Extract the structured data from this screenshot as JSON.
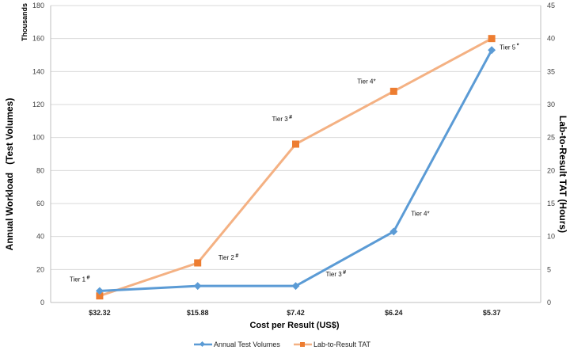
{
  "colors": {
    "series_1": "#5b9bd5",
    "series_2": "#f4b183",
    "series_2_marker": "#ed7d31",
    "grid": "#d9d9d9"
  },
  "chart_data": {
    "type": "line",
    "title": "",
    "xlabel": "Cost per Result (US$)",
    "ylabel": "Annual Workload   (Test Volumes)",
    "ylabel_units": "Thousands",
    "y2label": "Lab-to-Result TAT (Hours)",
    "categories": [
      "$32.32",
      "$15.88",
      "$7.42",
      "$6.24",
      "$5.37"
    ],
    "ylim": [
      0,
      180
    ],
    "y2lim": [
      0,
      45
    ],
    "yticks": [
      "0",
      "20",
      "40",
      "60",
      "80",
      "100",
      "120",
      "140",
      "160",
      "180"
    ],
    "y2ticks": [
      "0",
      "5",
      "10",
      "15",
      "20",
      "25",
      "30",
      "35",
      "40",
      "45"
    ],
    "grid": "horizontal",
    "legend": "bottom",
    "series": [
      {
        "name": "Annual Test Volumes",
        "axis": "left",
        "marker": "diamond",
        "values": [
          7,
          10,
          10,
          43,
          153
        ]
      },
      {
        "name": "Lab-to-Result TAT",
        "axis": "right",
        "marker": "square",
        "values": [
          1,
          6,
          24,
          32,
          40
        ]
      }
    ],
    "annotations": [
      {
        "text": "Tier 1",
        "sup": "#",
        "series": 0,
        "point": 0,
        "dx": -38,
        "dy": -12
      },
      {
        "text": "Tier 2",
        "sup": "#",
        "series": 1,
        "point": 1,
        "dx": 26,
        "dy": -4
      },
      {
        "text": "Tier 3",
        "sup": "#",
        "series": 1,
        "point": 2,
        "dx": -30,
        "dy": -29
      },
      {
        "text": "Tier 4*",
        "sup": "",
        "series": 1,
        "point": 3,
        "dx": -46,
        "dy": -10
      },
      {
        "text": "Tier 5",
        "sup": "*",
        "series": 1,
        "point": 4,
        "dx": 10,
        "dy": 14
      },
      {
        "text": "Tier 3",
        "sup": "#",
        "series": 0,
        "point": 2,
        "dx": 38,
        "dy": -12
      },
      {
        "text": "Tier 4*",
        "sup": "",
        "series": 0,
        "point": 3,
        "dx": 22,
        "dy": -20
      }
    ]
  }
}
